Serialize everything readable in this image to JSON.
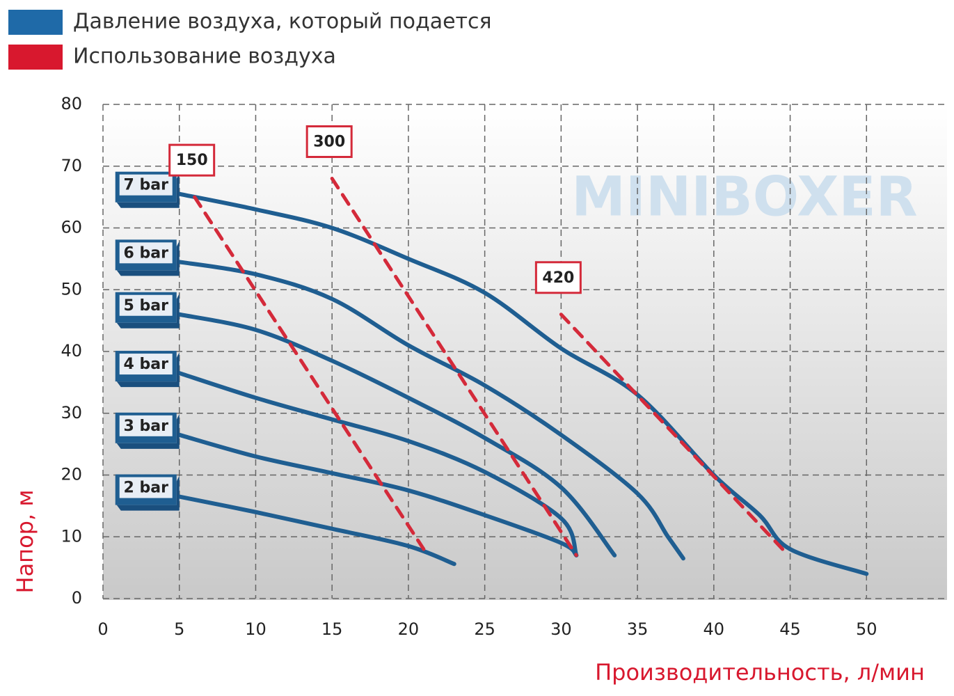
{
  "chart_data": {
    "type": "line",
    "xlabel": "Производительность, л/мин",
    "ylabel": "Напор, м",
    "watermark": "MINIBOXER",
    "xlim": [
      0,
      55
    ],
    "ylim": [
      0,
      80
    ],
    "xticks": [
      0,
      5,
      10,
      15,
      20,
      25,
      30,
      35,
      40,
      45,
      50
    ],
    "yticks": [
      0,
      10,
      20,
      30,
      40,
      50,
      60,
      70,
      80
    ],
    "grid": true,
    "legend": [
      {
        "label": "Давление воздуха, который подается",
        "color": "#1f6aa8"
      },
      {
        "label": "Использование воздуха",
        "color": "#d8182e"
      }
    ],
    "series": [
      {
        "name": "7 bar",
        "color": "#1f5e91",
        "style": "solid",
        "x": [
          5,
          10,
          15,
          20,
          25,
          30,
          35,
          40,
          43,
          45,
          50
        ],
        "values": [
          65.5,
          63,
          60,
          55,
          49.5,
          40.5,
          33,
          20,
          13.5,
          8,
          4
        ]
      },
      {
        "name": "6 bar",
        "color": "#1f5e91",
        "style": "solid",
        "x": [
          5,
          10,
          15,
          20,
          25,
          30,
          35,
          37,
          38
        ],
        "values": [
          54.5,
          52.5,
          48.5,
          41,
          34.5,
          26.5,
          17,
          10,
          6.5
        ]
      },
      {
        "name": "5 bar",
        "color": "#1f5e91",
        "style": "solid",
        "x": [
          5,
          10,
          15,
          20,
          25,
          30,
          33.5
        ],
        "values": [
          46,
          43.5,
          38.5,
          32.5,
          26,
          18,
          7
        ]
      },
      {
        "name": "4 bar",
        "color": "#1f5e91",
        "style": "solid",
        "x": [
          5,
          10,
          15,
          20,
          25,
          30,
          31
        ],
        "values": [
          36.5,
          32.5,
          29,
          25.5,
          20.5,
          13,
          7
        ]
      },
      {
        "name": "3 bar",
        "color": "#1f5e91",
        "style": "solid",
        "x": [
          5,
          10,
          15,
          20,
          25,
          30,
          31
        ],
        "values": [
          26.5,
          23,
          20.3,
          17.5,
          13.5,
          9,
          7
        ]
      },
      {
        "name": "2 bar",
        "color": "#1f5e91",
        "style": "solid",
        "x": [
          5,
          10,
          15,
          20,
          23
        ],
        "values": [
          16.5,
          14,
          11.3,
          8.5,
          5.6
        ]
      },
      {
        "name": "150",
        "color": "#d42a3a",
        "style": "dashed",
        "x": [
          6,
          21
        ],
        "values": [
          65,
          8
        ]
      },
      {
        "name": "300",
        "color": "#d42a3a",
        "style": "dashed",
        "x": [
          15,
          31
        ],
        "values": [
          68,
          7
        ]
      },
      {
        "name": "420",
        "color": "#d42a3a",
        "style": "dashed",
        "x": [
          30,
          44.5
        ],
        "values": [
          46,
          8
        ]
      }
    ]
  }
}
